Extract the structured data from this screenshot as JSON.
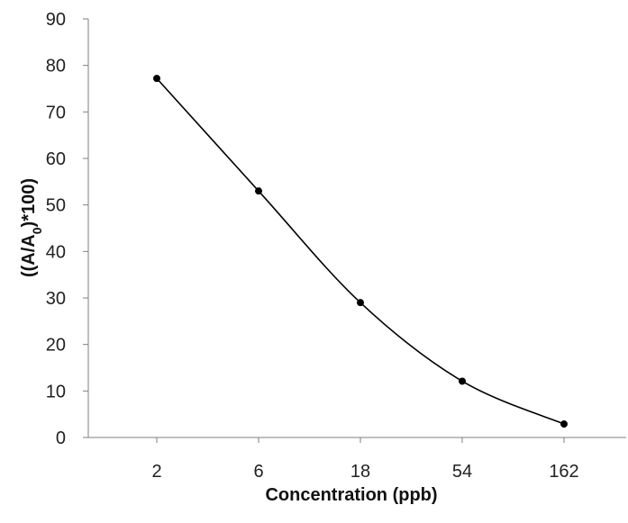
{
  "chart_data": {
    "type": "line",
    "title": "",
    "xlabel": "Concentration (ppb)",
    "ylabel": {
      "prefix": "((A/A",
      "subscript": "0",
      "suffix": ")*100)"
    },
    "categories": [
      "2",
      "6",
      "18",
      "54",
      "162"
    ],
    "series": [
      {
        "values": [
          77.2,
          53.0,
          29.0,
          12.1,
          2.9
        ]
      }
    ],
    "ylim": [
      0,
      90
    ],
    "yticks": [
      "0",
      "10",
      "20",
      "30",
      "40",
      "50",
      "60",
      "70",
      "80",
      "90"
    ],
    "grid": false,
    "line_smoothed": true,
    "colors": {
      "line": "#000000",
      "marker": "#000000",
      "axis": "#7f7f7f",
      "text": "#222222"
    }
  }
}
